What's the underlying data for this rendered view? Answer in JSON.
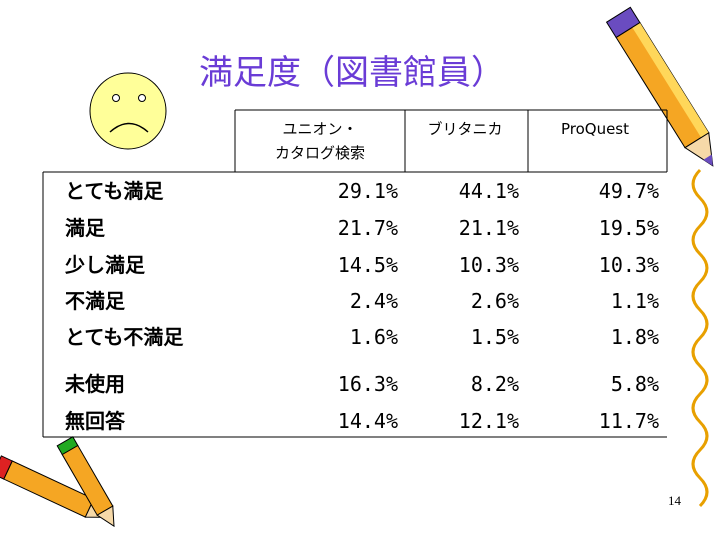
{
  "title": "満足度（図書館員）",
  "table": {
    "header": [
      [
        "ユニオン・",
        "カタログ検索"
      ],
      [
        "ブリタニカ"
      ],
      [
        "ProQuest"
      ]
    ],
    "rows": [
      [
        "とても満足",
        "29.1%",
        "44.1%",
        "49.7%"
      ],
      [
        "満足",
        "21.7%",
        "21.1%",
        "19.5%"
      ],
      [
        "少し満足",
        "14.5%",
        "10.3%",
        "10.3%"
      ],
      [
        "不満足",
        "2.4%",
        "2.6%",
        "1.1%"
      ],
      [
        "とても不満足",
        "1.6%",
        "1.5%",
        "1.8%"
      ],
      [
        "未使用",
        "16.3%",
        "8.2%",
        "5.8%"
      ],
      [
        "無回答",
        "14.4%",
        "12.1%",
        "11.7%"
      ]
    ]
  },
  "page_number": "14"
}
